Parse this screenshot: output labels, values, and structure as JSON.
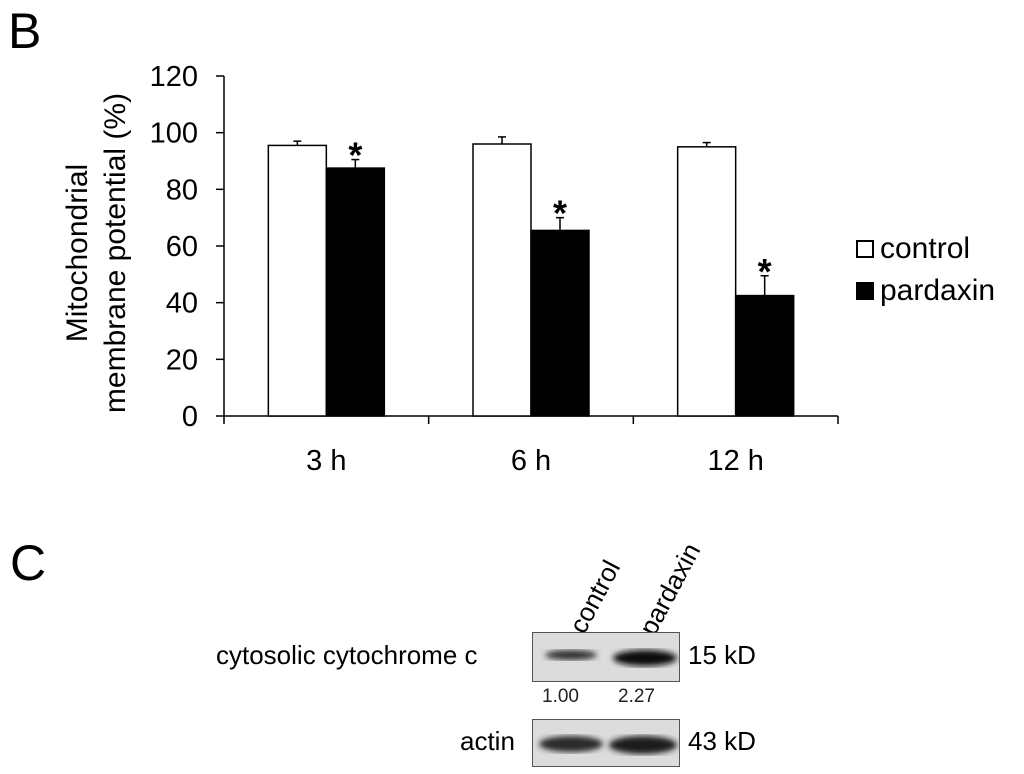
{
  "panels": {
    "b_letter": "B",
    "c_letter": "C"
  },
  "chart_data": {
    "type": "bar",
    "title": "",
    "xlabel": "",
    "ylabel": "Mitochondrial membrane potential (%)",
    "ylabel_lines": [
      "Mitochondrial",
      "membrane potential (%)"
    ],
    "ylim": [
      0,
      120
    ],
    "yticks": [
      0,
      20,
      40,
      60,
      80,
      100,
      120
    ],
    "categories": [
      "3 h",
      "6 h",
      "12 h"
    ],
    "grid": false,
    "legend_position": "right",
    "series": [
      {
        "name": "control",
        "color": "#ffffff",
        "values": [
          95.5,
          96,
          95
        ],
        "errors": [
          1.5,
          2.5,
          1.5
        ]
      },
      {
        "name": "pardaxin",
        "color": "#000000",
        "values": [
          87.5,
          65.5,
          42.5
        ],
        "errors": [
          3,
          4.5,
          7
        ]
      }
    ],
    "annotations": [
      {
        "category": "3 h",
        "series": "pardaxin",
        "text": "*"
      },
      {
        "category": "6 h",
        "series": "pardaxin",
        "text": "*"
      },
      {
        "category": "12 h",
        "series": "pardaxin",
        "text": "*"
      }
    ]
  },
  "western_blot": {
    "lanes": [
      "control",
      "pardaxin"
    ],
    "rows": [
      {
        "label": "cytosolic cytochrome c",
        "size": "15 kD",
        "band_intensity": [
          0.35,
          1.0
        ]
      },
      {
        "label": "actin",
        "size": "43 kD",
        "band_intensity": [
          0.75,
          0.85
        ]
      }
    ],
    "quantification": [
      "1.00",
      "2.27"
    ]
  }
}
